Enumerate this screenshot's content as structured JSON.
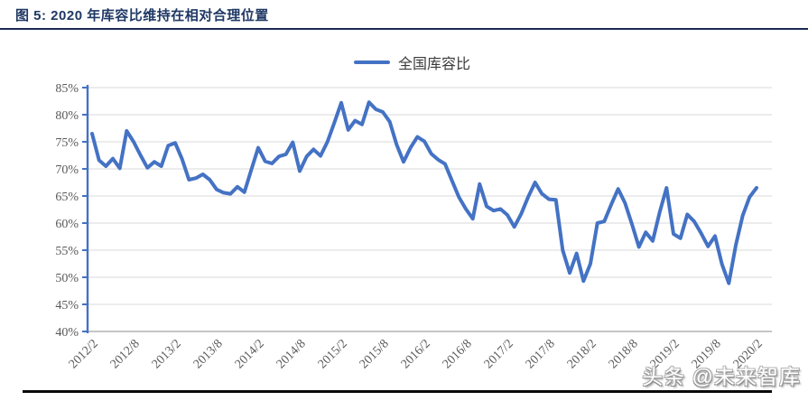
{
  "header": {
    "title": "图 5:  2020 年库容比维持在相对合理位置"
  },
  "legend": {
    "label": "全国库容比"
  },
  "watermark": {
    "text": "头条 @未来智库"
  },
  "colors": {
    "series_blue": "#4472C4",
    "gridline": "#D9D9D9",
    "bottom_axis": "#B3B3B3",
    "tick_text": "#595959",
    "title_navy": "#1F3864"
  },
  "chart_data": {
    "type": "line",
    "title": "图 5: 2020 年库容比维持在相对合理位置",
    "legend_position": "top-center",
    "grid": "horizontal",
    "ylim": [
      40,
      85
    ],
    "y_tick_step": 5,
    "y_unit": "%",
    "y_tick_labels": [
      "85%",
      "80%",
      "75%",
      "70%",
      "65%",
      "60%",
      "55%",
      "50%",
      "45%",
      "40%"
    ],
    "x_tick_labels": [
      "2012/2",
      "2012/8",
      "2013/2",
      "2013/8",
      "2014/2",
      "2014/8",
      "2015/2",
      "2015/8",
      "2016/2",
      "2016/8",
      "2017/2",
      "2017/8",
      "2018/2",
      "2018/8",
      "2019/2",
      "2019/8",
      "2020/2"
    ],
    "x_tick_every_n_points": 6,
    "x": [
      "2012/2",
      "2012/3",
      "2012/4",
      "2012/5",
      "2012/6",
      "2012/7",
      "2012/8",
      "2012/9",
      "2012/10",
      "2012/11",
      "2012/12",
      "2013/1",
      "2013/2",
      "2013/3",
      "2013/4",
      "2013/5",
      "2013/6",
      "2013/7",
      "2013/8",
      "2013/9",
      "2013/10",
      "2013/11",
      "2013/12",
      "2014/1",
      "2014/2",
      "2014/3",
      "2014/4",
      "2014/5",
      "2014/6",
      "2014/7",
      "2014/8",
      "2014/9",
      "2014/10",
      "2014/11",
      "2014/12",
      "2015/1",
      "2015/2",
      "2015/3",
      "2015/4",
      "2015/5",
      "2015/6",
      "2015/7",
      "2015/8",
      "2015/9",
      "2015/10",
      "2015/11",
      "2015/12",
      "2016/1",
      "2016/2",
      "2016/3",
      "2016/4",
      "2016/5",
      "2016/6",
      "2016/7",
      "2016/8",
      "2016/9",
      "2016/10",
      "2016/11",
      "2016/12",
      "2017/1",
      "2017/2",
      "2017/3",
      "2017/4",
      "2017/5",
      "2017/6",
      "2017/7",
      "2017/8",
      "2017/9",
      "2017/10",
      "2017/11",
      "2017/12",
      "2018/1",
      "2018/2",
      "2018/3",
      "2018/4",
      "2018/5",
      "2018/6",
      "2018/7",
      "2018/8",
      "2018/9",
      "2018/10",
      "2018/11",
      "2018/12",
      "2019/1",
      "2019/2",
      "2019/3",
      "2019/4",
      "2019/5",
      "2019/6",
      "2019/7",
      "2019/8",
      "2019/9",
      "2019/10",
      "2019/11",
      "2019/12",
      "2020/1",
      "2020/2"
    ],
    "series": [
      {
        "name": "全国库容比",
        "color": "#4472C4",
        "values": [
          76.5,
          71.6,
          70.5,
          71.9,
          70.1,
          77.0,
          75.0,
          72.5,
          70.2,
          71.3,
          70.5,
          74.3,
          74.8,
          71.8,
          68.0,
          68.3,
          69.0,
          68.0,
          66.2,
          65.6,
          65.4,
          66.7,
          65.7,
          69.8,
          73.9,
          71.4,
          71.0,
          72.3,
          72.7,
          74.9,
          69.6,
          72.3,
          73.6,
          72.4,
          75.0,
          78.5,
          82.2,
          77.2,
          78.9,
          78.2,
          82.3,
          81.0,
          80.5,
          78.7,
          74.5,
          71.3,
          73.9,
          75.9,
          75.1,
          72.8,
          71.7,
          70.9,
          67.8,
          64.8,
          62.6,
          60.8,
          67.2,
          63.1,
          62.3,
          62.6,
          61.5,
          59.3,
          61.7,
          64.8,
          67.5,
          65.4,
          64.4,
          64.3,
          55.0,
          50.8,
          54.4,
          49.3,
          52.5,
          60.0,
          60.3,
          63.4,
          66.3,
          63.7,
          59.8,
          55.6,
          58.3,
          56.7,
          62.0,
          66.5,
          58.0,
          57.2,
          61.6,
          60.3,
          58.1,
          55.7,
          57.6,
          52.4,
          48.9,
          55.9,
          61.4,
          64.8,
          66.5
        ]
      }
    ]
  }
}
